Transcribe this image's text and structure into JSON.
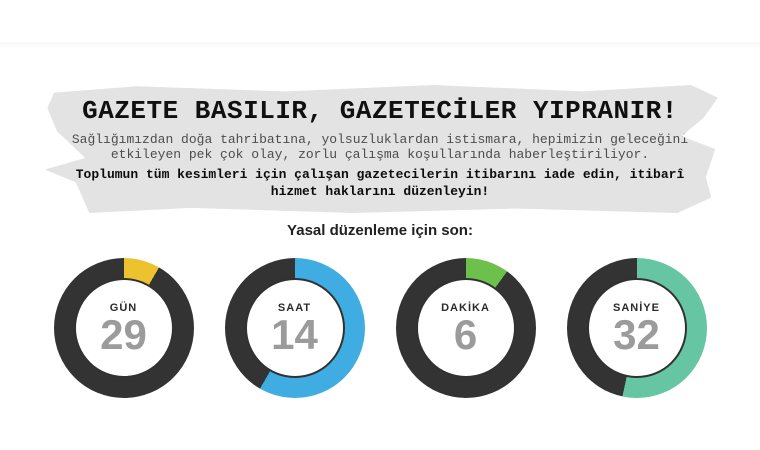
{
  "banner": {
    "title": "GAZETE BASILIR, GAZETECİLER YIPRANIR!",
    "paragraph": "Sağlığımızdan doğa tahribatına, yolsuzluklardan istismara, hepimizin geleceğini etkileyen pek çok olay, zorlu çalışma koşullarında haberleştiriliyor.",
    "callout": "Toplumun tüm kesimleri için çalışan gazetecilerin itibarını iade edin, itibarî hizmet haklarını düzenleyin!",
    "background_color": "#e3e3e3"
  },
  "countdown": {
    "heading": "Yasal düzenleme için son:",
    "ring_remainder_color": "#333333",
    "number_color": "#9b9b9b",
    "items": [
      {
        "label": "GÜN",
        "value": "29",
        "color": "#ecc32f",
        "arc_degrees": 30
      },
      {
        "label": "SAAT",
        "value": "14",
        "color": "#3fade2",
        "arc_degrees": 210
      },
      {
        "label": "DAKİKA",
        "value": "6",
        "color": "#6cc04b",
        "arc_degrees": 36
      },
      {
        "label": "SANİYE",
        "value": "32",
        "color": "#66c6a4",
        "arc_degrees": 192
      }
    ]
  },
  "chart_data": {
    "type": "pie",
    "title": "Yasal düzenleme için son:",
    "note": "Four countdown donut rings; colored arc starts at 12 o'clock going clockwise, remainder is dark charcoal",
    "series": [
      {
        "name": "GÜN",
        "value": 29,
        "arc_degrees": 30,
        "arc_color": "#ecc32f",
        "remainder_color": "#333333"
      },
      {
        "name": "SAAT",
        "value": 14,
        "arc_degrees": 210,
        "arc_color": "#3fade2",
        "remainder_color": "#333333"
      },
      {
        "name": "DAKİKA",
        "value": 6,
        "arc_degrees": 36,
        "arc_color": "#6cc04b",
        "remainder_color": "#333333"
      },
      {
        "name": "SANİYE",
        "value": 32,
        "arc_degrees": 192,
        "arc_color": "#66c6a4",
        "remainder_color": "#333333"
      }
    ]
  }
}
